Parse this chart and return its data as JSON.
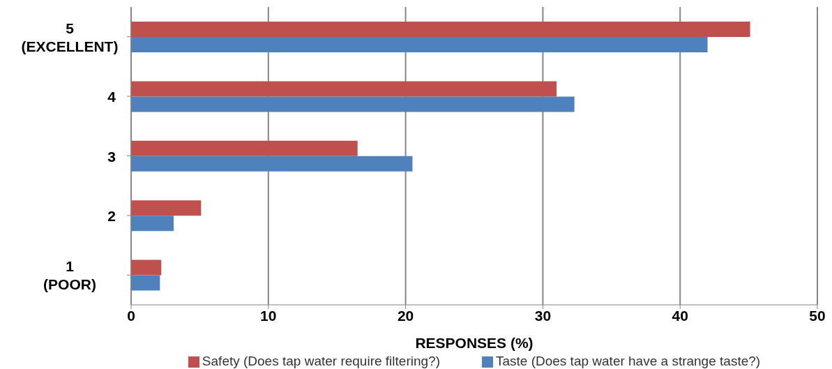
{
  "chart_data": {
    "type": "bar",
    "orientation": "horizontal",
    "xlabel": "RESPONSES (%)",
    "categories": [
      "5 (EXCELLENT)",
      "4",
      "3",
      "2",
      "1 (POOR)"
    ],
    "series": [
      {
        "name": "Safety (Does tap water require filtering?)",
        "color": "#c0504d",
        "values": [
          45.1,
          31.0,
          16.5,
          5.1,
          2.2
        ]
      },
      {
        "name": "Taste (Does tap water have a strange taste?)",
        "color": "#4f81bd",
        "values": [
          42.0,
          32.3,
          20.5,
          3.1,
          2.1
        ]
      }
    ],
    "xlim": [
      0,
      50
    ],
    "xticks": [
      0,
      10,
      20,
      30,
      40,
      50
    ],
    "grid": "x",
    "legend": "bottom"
  }
}
